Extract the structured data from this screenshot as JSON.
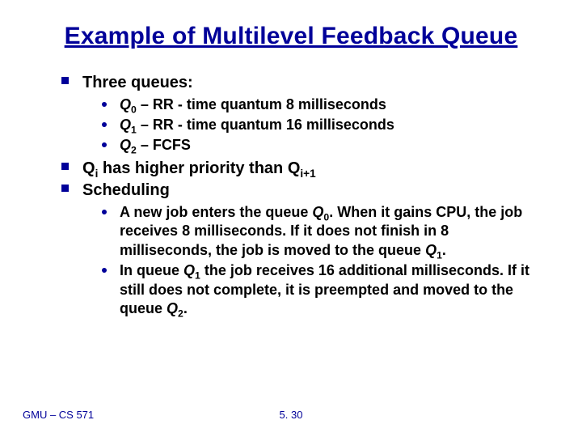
{
  "title": "Example of Multilevel Feedback Queue",
  "b1": {
    "heading": "Three queues:"
  },
  "q0": {
    "pre": "Q",
    "sub": "0",
    "post": " – RR - time quantum 8 milliseconds"
  },
  "q1": {
    "pre": "Q",
    "sub": "1",
    "post": " – RR - time quantum 16 milliseconds"
  },
  "q2": {
    "pre": "Q",
    "sub": "2",
    "post": " – FCFS"
  },
  "b2": {
    "p1": "Q",
    "s1": "i",
    "p2": " has higher priority than Q",
    "s2": "i+1"
  },
  "b3": {
    "heading": "Scheduling"
  },
  "s1": {
    "t1": "A new job enters the queue ",
    "q": "Q",
    "sub0": "0",
    "t2": ". When it gains CPU, the job receives 8 milliseconds.  If it does not finish in 8 milliseconds, the job is moved to the queue ",
    "sub1": "1",
    "t3": "."
  },
  "s2": {
    "t1": "In queue ",
    "q": "Q",
    "sub1": "1",
    "t2": " the job receives 16 additional milliseconds.  If it still does not complete, it is preempted and moved to the queue ",
    "sub2": "2",
    "t3": "."
  },
  "footer": {
    "left": "GMU – CS 571",
    "center": "5. 30"
  },
  "colors": {
    "accent": "#000099",
    "text": "#000000",
    "bg": "#ffffff"
  }
}
